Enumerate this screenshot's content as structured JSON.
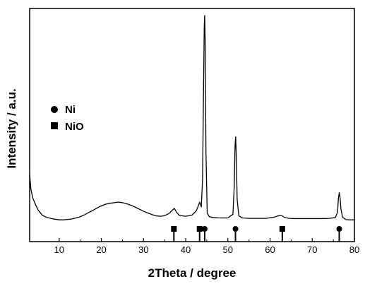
{
  "chart_data": {
    "type": "line",
    "title": "",
    "xlabel": "2Theta / degree",
    "ylabel": "Intensity / a.u.",
    "xlim": [
      3,
      80
    ],
    "ylim": [
      0,
      100
    ],
    "x_ticks": [
      "10",
      "20",
      "30",
      "40",
      "50",
      "60",
      "70",
      "80"
    ],
    "x_tick_values": [
      10,
      20,
      30,
      40,
      50,
      60,
      70,
      80
    ],
    "y_tick_labels": "none",
    "grid": false,
    "legend_position": "upper-left",
    "series": [
      {
        "kind": "xrd-pattern",
        "color": "#000000",
        "x": [
          3.0,
          3.3,
          3.7,
          4.2,
          5.0,
          6.0,
          7.0,
          8.0,
          9.0,
          10.0,
          11.0,
          12.0,
          13.0,
          14.0,
          15.0,
          16.0,
          17.0,
          18.0,
          19.0,
          20.0,
          21.0,
          22.0,
          23.0,
          24.0,
          25.0,
          26.0,
          27.0,
          28.0,
          29.0,
          30.0,
          31.0,
          32.0,
          33.0,
          34.0,
          35.0,
          36.0,
          36.8,
          37.3,
          37.8,
          38.5,
          40.0,
          41.5,
          42.5,
          43.0,
          43.3,
          43.7,
          44.0,
          44.2,
          44.4,
          44.5,
          44.6,
          44.8,
          45.1,
          45.6,
          46.5,
          48.0,
          50.0,
          51.2,
          51.5,
          51.7,
          51.85,
          52.0,
          52.2,
          52.6,
          53.5,
          55.0,
          57.0,
          59.0,
          61.0,
          62.2,
          62.8,
          63.4,
          64.5,
          66.0,
          68.0,
          70.0,
          72.0,
          74.0,
          75.5,
          76.0,
          76.2,
          76.4,
          76.6,
          76.8,
          77.2,
          78.0,
          79.0,
          80.0
        ],
        "y": [
          24.0,
          17.0,
          13.0,
          10.5,
          7.0,
          4.5,
          3.5,
          3.0,
          2.6,
          2.3,
          2.3,
          2.5,
          2.7,
          3.2,
          3.8,
          4.7,
          5.8,
          6.8,
          8.0,
          9.0,
          9.8,
          10.2,
          10.5,
          10.8,
          10.5,
          10.0,
          9.3,
          8.4,
          7.4,
          6.4,
          5.6,
          4.8,
          4.2,
          4.0,
          4.3,
          5.3,
          6.8,
          7.8,
          6.0,
          4.4,
          4.0,
          4.6,
          6.6,
          9.0,
          10.8,
          8.5,
          22.0,
          60.0,
          95.0,
          100.0,
          90.0,
          35.0,
          5.5,
          3.8,
          3.4,
          3.2,
          3.2,
          5.0,
          18.0,
          38.0,
          42.0,
          32.0,
          12.0,
          4.2,
          3.2,
          3.0,
          3.0,
          3.0,
          3.6,
          4.4,
          4.3,
          3.5,
          3.0,
          2.9,
          2.9,
          2.9,
          2.9,
          3.0,
          3.4,
          6.0,
          12.5,
          15.3,
          13.0,
          7.5,
          3.6,
          2.4,
          2.3,
          2.3
        ]
      }
    ],
    "reference_markers": [
      {
        "phase": "Ni",
        "symbol": "circle",
        "positions": [
          44.5,
          51.8,
          76.4
        ]
      },
      {
        "phase": "NiO",
        "symbol": "square",
        "positions": [
          37.2,
          43.3,
          62.9
        ]
      }
    ],
    "legend": [
      {
        "symbol": "circle",
        "label": "Ni"
      },
      {
        "symbol": "square",
        "label": "NiO"
      }
    ]
  }
}
